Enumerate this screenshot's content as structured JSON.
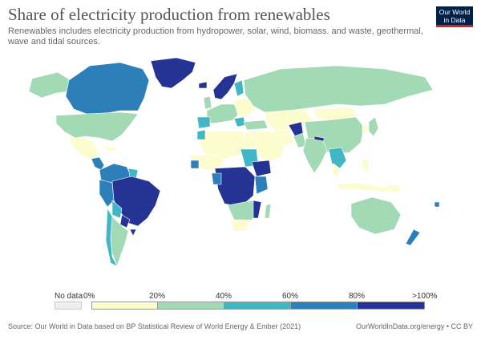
{
  "header": {
    "title": "Share of electricity production from renewables",
    "subtitle": "Renewables includes electricity production from hydropower, solar, wind, biomass. and waste, geothermal, wave and tidal sources.",
    "logo_line1": "Our World",
    "logo_line2": "in Data"
  },
  "legend": {
    "nodata_label": "No data",
    "bins": [
      {
        "label_low": "0%",
        "label_high": "20%",
        "color": "#fdfccf"
      },
      {
        "label_low": "20%",
        "label_high": "40%",
        "color": "#a1dab4"
      },
      {
        "label_low": "40%",
        "label_high": "60%",
        "color": "#41b6c4"
      },
      {
        "label_low": "60%",
        "label_high": "80%",
        "color": "#2c7fb8"
      },
      {
        "label_low": "80%",
        "label_high": ">100%",
        "color": "#253494"
      }
    ],
    "tick_labels": [
      "0%",
      "20%",
      "40%",
      "60%",
      "80%",
      ">100%"
    ],
    "nodata_color": "#eeeeee"
  },
  "footer": {
    "source": "Source: Our World in Data based on BP Statistical Review of World Energy & Ember (2021)",
    "credit": "OurWorldInData.org/energy • CC BY"
  },
  "colors": {
    "c0": "#fdfccf",
    "c1": "#a1dab4",
    "c2": "#41b6c4",
    "c3": "#2c7fb8",
    "c4": "#253494",
    "nodata": "#eeeeee",
    "border": "#ffffff"
  }
}
